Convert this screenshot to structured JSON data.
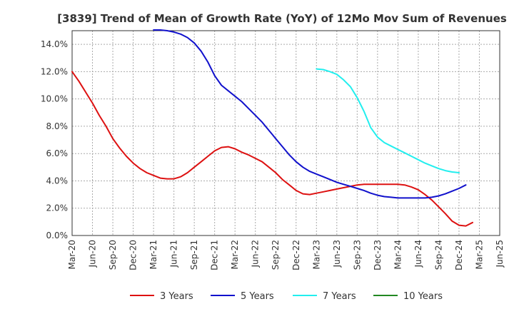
{
  "chart_data": {
    "type": "line",
    "title": "[3839]  Trend of Mean of Growth Rate (YoY) of 12Mo Mov Sum of Revenues",
    "xlabel": "",
    "ylabel": "",
    "ylim": [
      0,
      15
    ],
    "y_ticks": [
      0,
      2,
      4,
      6,
      8,
      10,
      12,
      14
    ],
    "y_tick_labels": [
      "0.0%",
      "2.0%",
      "4.0%",
      "6.0%",
      "8.0%",
      "10.0%",
      "12.0%",
      "14.0%"
    ],
    "x_tick_labels": [
      "Mar-20",
      "Jun-20",
      "Sep-20",
      "Dec-20",
      "Mar-21",
      "Jun-21",
      "Sep-21",
      "Dec-21",
      "Mar-22",
      "Jun-22",
      "Sep-22",
      "Dec-22",
      "Mar-23",
      "Jun-23",
      "Sep-23",
      "Dec-23",
      "Mar-24",
      "Jun-24",
      "Sep-24",
      "Dec-24",
      "Mar-25",
      "Jun-25"
    ],
    "grid": true,
    "legend_position": "bottom",
    "series": [
      {
        "name": "3 Years",
        "color": "#dd1111",
        "start_month_index": 0,
        "values": [
          12.0,
          11.3,
          10.5,
          9.7,
          8.8,
          8.0,
          7.1,
          6.4,
          5.8,
          5.3,
          4.9,
          4.6,
          4.4,
          4.2,
          4.15,
          4.15,
          4.3,
          4.6,
          5.0,
          5.4,
          5.8,
          6.2,
          6.45,
          6.5,
          6.35,
          6.1,
          5.9,
          5.65,
          5.4,
          5.0,
          4.6,
          4.1,
          3.7,
          3.3,
          3.05,
          3.0,
          3.1,
          3.2,
          3.3,
          3.4,
          3.5,
          3.6,
          3.7,
          3.75,
          3.75,
          3.75,
          3.75,
          3.75,
          3.75,
          3.7,
          3.55,
          3.35,
          3.0,
          2.6,
          2.1,
          1.6,
          1.05,
          0.75,
          0.7,
          0.95
        ]
      },
      {
        "name": "5 Years",
        "color": "#1111cc",
        "start_month_index": 12,
        "values": [
          15.05,
          15.05,
          15.0,
          14.9,
          14.75,
          14.5,
          14.1,
          13.5,
          12.7,
          11.7,
          11.0,
          10.6,
          10.2,
          9.8,
          9.3,
          8.8,
          8.3,
          7.7,
          7.1,
          6.5,
          5.9,
          5.4,
          5.0,
          4.7,
          4.5,
          4.3,
          4.1,
          3.9,
          3.75,
          3.6,
          3.45,
          3.3,
          3.1,
          2.95,
          2.85,
          2.8,
          2.75,
          2.75,
          2.75,
          2.75,
          2.75,
          2.8,
          2.9,
          3.05,
          3.25,
          3.45,
          3.7
        ]
      },
      {
        "name": "7 Years",
        "color": "#22eeee",
        "start_month_index": 36,
        "values": [
          12.2,
          12.15,
          12.0,
          11.8,
          11.4,
          10.9,
          10.1,
          9.1,
          7.9,
          7.2,
          6.8,
          6.55,
          6.3,
          6.05,
          5.8,
          5.55,
          5.3,
          5.1,
          4.9,
          4.75,
          4.65,
          4.6
        ]
      },
      {
        "name": "10 Years",
        "color": "#228822",
        "start_month_index": 0,
        "values": []
      }
    ]
  }
}
